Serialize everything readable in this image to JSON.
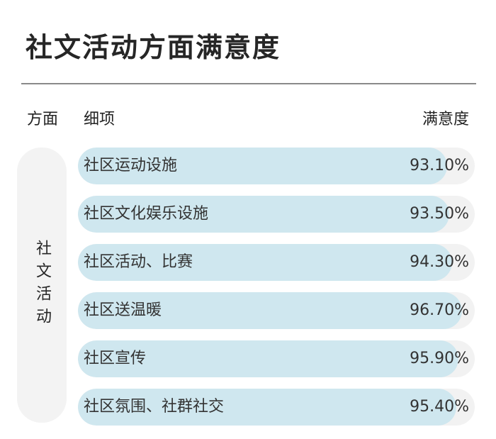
{
  "title": "社文活动方面满意度",
  "headers": {
    "aspect": "方面",
    "item": "细项",
    "satisfaction": "满意度"
  },
  "category": "社文活动",
  "colors": {
    "bar_fill": "#cfe7ef",
    "bar_track": "#f2f2f2",
    "category_bg": "#f3f3f3"
  },
  "chart_data": {
    "type": "bar",
    "orientation": "horizontal",
    "title": "社文活动方面满意度",
    "categories": [
      "社区运动设施",
      "社区文化娱乐设施",
      "社区活动、比赛",
      "社区送温暖",
      "社区宣传",
      "社区氛围、社群社交"
    ],
    "values": [
      93.1,
      93.5,
      94.3,
      96.7,
      95.9,
      95.4
    ],
    "value_labels": [
      "93.10%",
      "93.50%",
      "94.30%",
      "96.70%",
      "95.90%",
      "95.40%"
    ],
    "unit": "%",
    "xlim": [
      0,
      100
    ],
    "grid": false
  }
}
